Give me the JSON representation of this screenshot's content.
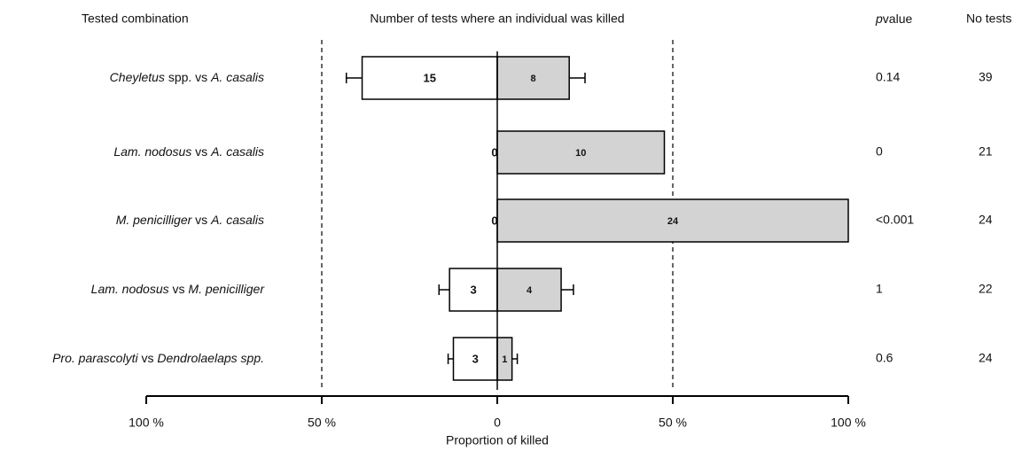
{
  "chart_data": {
    "type": "diverging-bar",
    "title": "Number of tests where an individual was killed",
    "column_titles": {
      "combination": "Tested combination",
      "p_italic": "p",
      "p_rest": "value",
      "tests": "No tests"
    },
    "xlabel": "Proportion of killed",
    "categories": [
      [
        {
          "text": "Cheyletus",
          "italic": true
        },
        {
          "text": " spp. vs ",
          "italic": false
        },
        {
          "text": "A. casalis",
          "italic": true
        }
      ],
      [
        {
          "text": "Lam. nodosus",
          "italic": true
        },
        {
          "text": " vs ",
          "italic": false
        },
        {
          "text": "A. casalis",
          "italic": true
        }
      ],
      [
        {
          "text": "M. penicilliger",
          "italic": true
        },
        {
          "text": " vs ",
          "italic": false
        },
        {
          "text": "A. casalis",
          "italic": true
        }
      ],
      [
        {
          "text": "Lam. nodosus",
          "italic": true
        },
        {
          "text": " vs ",
          "italic": false
        },
        {
          "text": "M. penicilliger",
          "italic": true
        }
      ],
      [
        {
          "text": "Pro. parascolyti",
          "italic": true
        },
        {
          "text": " vs ",
          "italic": false
        },
        {
          "text": "Dendrolaelaps spp.",
          "italic": true
        }
      ]
    ],
    "series": [
      {
        "color": "#ffffff",
        "values": [
          -38.5,
          0,
          0,
          -13.6,
          -12.5
        ],
        "errors": [
          4.5,
          null,
          null,
          3,
          1.5
        ],
        "counts": [
          15,
          0,
          0,
          3,
          3
        ]
      },
      {
        "color": "#d3d3d3",
        "values": [
          20.5,
          47.6,
          100,
          18.2,
          4.2
        ],
        "errors": [
          4.5,
          null,
          null,
          3.5,
          1.5
        ],
        "counts": [
          8,
          10,
          24,
          4,
          1
        ]
      }
    ],
    "p_values": [
      "0.14",
      "0",
      "<0.001",
      "1",
      "0.6"
    ],
    "no_tests": [
      39,
      21,
      24,
      22,
      24
    ],
    "xlim": [
      -100,
      100
    ],
    "xticks": [
      {
        "value": -100,
        "label": "100 %"
      },
      {
        "value": -50,
        "label": "50 %"
      },
      0,
      {
        "value": 50,
        "label": "50 %"
      },
      {
        "value": 100,
        "label": "100 %"
      }
    ],
    "dashed_lines": [
      -50,
      50
    ]
  }
}
